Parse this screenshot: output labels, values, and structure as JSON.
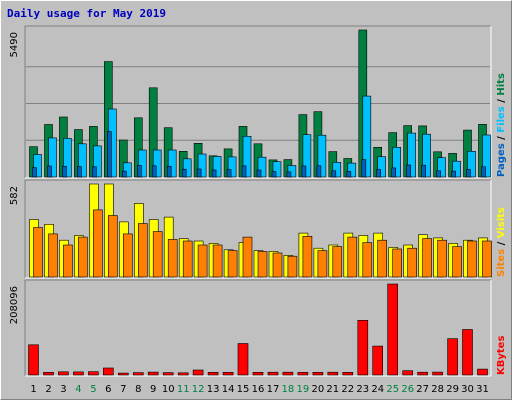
{
  "chart_data": [
    {
      "type": "bar",
      "title": "Daily usage for May 2019",
      "categories": [
        "1",
        "2",
        "3",
        "4",
        "5",
        "6",
        "7",
        "8",
        "9",
        "10",
        "11",
        "12",
        "13",
        "14",
        "15",
        "16",
        "17",
        "18",
        "19",
        "20",
        "21",
        "22",
        "23",
        "24",
        "25",
        "26",
        "27",
        "28",
        "29",
        "30",
        "31"
      ],
      "weekend_days": [
        "4",
        "5",
        "11",
        "12",
        "18",
        "19",
        "25",
        "26"
      ],
      "ymax_label": "5490",
      "ylim": [
        0,
        5490
      ],
      "ylabel_parts": [
        "Pages",
        "Files",
        "Hits"
      ],
      "series": [
        {
          "name": "Hits",
          "color": "#008040",
          "values": [
            1130,
            1960,
            2240,
            1770,
            1890,
            4310,
            1380,
            2210,
            3330,
            1840,
            960,
            1260,
            790,
            1050,
            1890,
            1240,
            640,
            650,
            2330,
            2440,
            950,
            690,
            5490,
            1110,
            1660,
            1920,
            1910,
            940,
            880,
            1750,
            1970
          ]
        },
        {
          "name": "Files",
          "color": "#00c0ff",
          "values": [
            840,
            1460,
            1440,
            1240,
            1160,
            2540,
            530,
            1010,
            1010,
            1010,
            680,
            860,
            770,
            750,
            1520,
            740,
            570,
            430,
            1580,
            1560,
            550,
            520,
            3020,
            760,
            1110,
            1640,
            1600,
            720,
            590,
            960,
            1570
          ]
        },
        {
          "name": "Pages",
          "color": "#0060c0",
          "values": [
            350,
            410,
            400,
            390,
            380,
            1700,
            220,
            430,
            420,
            400,
            290,
            300,
            260,
            280,
            420,
            260,
            200,
            190,
            410,
            420,
            230,
            210,
            650,
            280,
            340,
            450,
            440,
            230,
            220,
            280,
            380
          ]
        }
      ]
    },
    {
      "type": "bar",
      "ymax_label": "582",
      "ylim": [
        0,
        582
      ],
      "ylabel_parts": [
        "Sites",
        "Visits"
      ],
      "categories": [
        "1",
        "2",
        "3",
        "4",
        "5",
        "6",
        "7",
        "8",
        "9",
        "10",
        "11",
        "12",
        "13",
        "14",
        "15",
        "16",
        "17",
        "18",
        "19",
        "20",
        "21",
        "22",
        "23",
        "24",
        "25",
        "26",
        "27",
        "28",
        "29",
        "30",
        "31"
      ],
      "series": [
        {
          "name": "Visits",
          "color": "#ffff00",
          "values": [
            360,
            330,
            230,
            260,
            582,
            582,
            345,
            460,
            360,
            375,
            240,
            225,
            210,
            170,
            215,
            165,
            160,
            135,
            275,
            180,
            200,
            275,
            260,
            275,
            185,
            200,
            265,
            245,
            210,
            230,
            245
          ]
        },
        {
          "name": "Sites",
          "color": "#ff8000",
          "values": [
            310,
            270,
            200,
            250,
            420,
            385,
            270,
            335,
            285,
            235,
            225,
            200,
            200,
            165,
            250,
            160,
            150,
            130,
            255,
            165,
            190,
            250,
            215,
            230,
            175,
            180,
            240,
            230,
            190,
            225,
            225
          ]
        }
      ]
    },
    {
      "type": "bar",
      "ymax_label": "208096",
      "ylim": [
        0,
        208096
      ],
      "ylabel_parts": [
        "KBytes"
      ],
      "categories": [
        "1",
        "2",
        "3",
        "4",
        "5",
        "6",
        "7",
        "8",
        "9",
        "10",
        "11",
        "12",
        "13",
        "14",
        "15",
        "16",
        "17",
        "18",
        "19",
        "20",
        "21",
        "22",
        "23",
        "24",
        "25",
        "26",
        "27",
        "28",
        "29",
        "30",
        "31"
      ],
      "series": [
        {
          "name": "KBytes",
          "color": "#ff0000",
          "values": [
            69000,
            6100,
            7400,
            7200,
            7600,
            15900,
            4400,
            5600,
            6600,
            5400,
            5100,
            11400,
            6100,
            6100,
            72000,
            6100,
            6300,
            6400,
            6100,
            6200,
            6300,
            6200,
            125000,
            66000,
            208096,
            9800,
            6500,
            6600,
            83000,
            104000,
            13500
          ]
        }
      ]
    }
  ]
}
